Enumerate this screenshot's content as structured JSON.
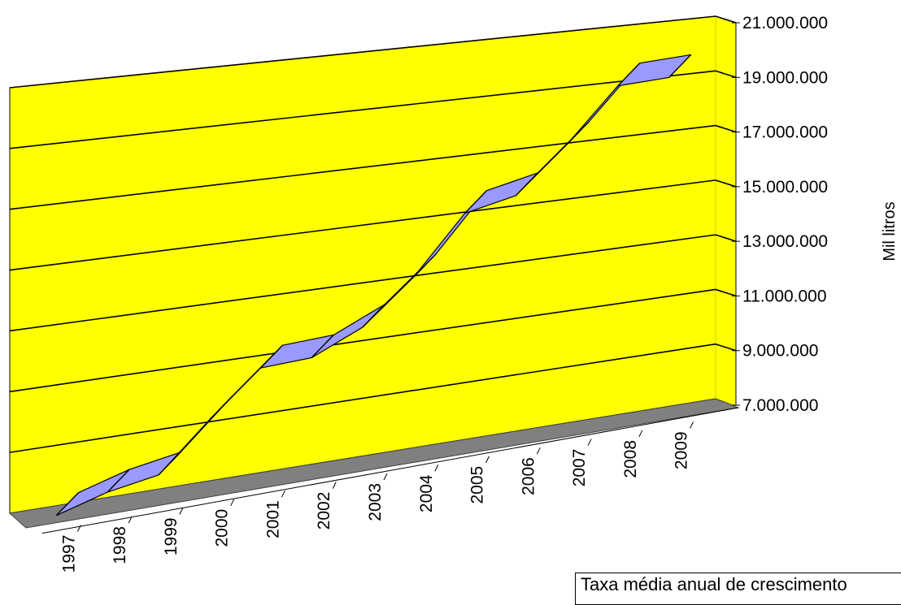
{
  "chart_data": {
    "type": "area",
    "subtype": "3d-ribbon-line",
    "categories": [
      "1997",
      "1998",
      "1999",
      "2000",
      "2001",
      "2002",
      "2003",
      "2004",
      "2005",
      "2006",
      "2007",
      "2008",
      "2009"
    ],
    "series": [
      {
        "values": [
          7000000,
          7500000,
          7800000,
          9400000,
          10900000,
          11000000,
          11800000,
          13300000,
          15300000,
          15700000,
          17300000,
          19200000,
          19300000
        ]
      }
    ],
    "ylabel": "Mil litros",
    "ylim": [
      7000000,
      21000000
    ],
    "yticks": [
      7000000,
      9000000,
      11000000,
      13000000,
      15000000,
      17000000,
      19000000,
      21000000
    ],
    "ytick_labels": [
      "7.000.000",
      "9.000.000",
      "11.000.000",
      "13.000.000",
      "15.000.000",
      "17.000.000",
      "19.000.000",
      "21.000.000"
    ],
    "grid": true,
    "colors": {
      "wall": "#ffff00",
      "floor": "#808080",
      "ribbon": "#9999ff",
      "line": "#000000"
    }
  },
  "note": {
    "text": "Taxa média anual de crescimento"
  }
}
